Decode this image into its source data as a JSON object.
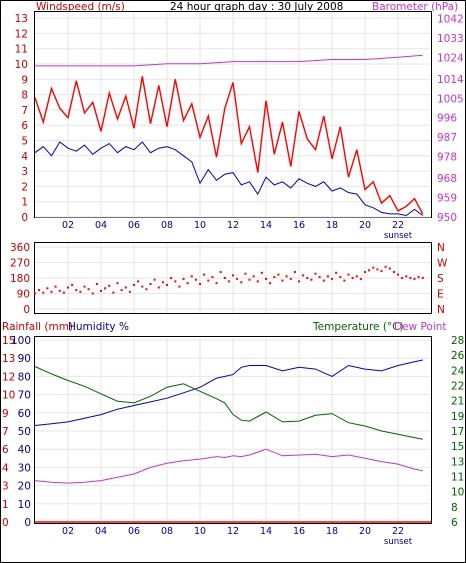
{
  "header": {
    "title": "24 hour graph day : 30 July 2008",
    "left_label": "Windspeed (m/s)",
    "right_label": "Barometer (hPa)"
  },
  "colors": {
    "frame": "#000000",
    "grid": "#e6e6e6",
    "dark_red": "#cc0000",
    "red": "#ff0000",
    "navy": "#000099",
    "magenta": "#cc33cc",
    "green": "#006600",
    "blue": "#0000cc",
    "background": "#ffffff"
  },
  "chart_data": [
    {
      "type": "line",
      "name": "wind-barometer",
      "title": "24 hour graph day : 30 July 2008",
      "x_tick_labels": [
        "02",
        "04",
        "06",
        "08",
        "10",
        "12",
        "14",
        "16",
        "18",
        "20",
        "22"
      ],
      "x_tick_hours": [
        2,
        4,
        6,
        8,
        10,
        12,
        14,
        16,
        18,
        20,
        22
      ],
      "xlim": [
        0,
        24
      ],
      "x_annotation": "sunset",
      "sunset_hour": 22,
      "left_axis": {
        "label": "Windspeed (m/s)",
        "ticks": [
          0,
          1,
          2,
          3,
          4,
          5,
          6,
          7,
          8,
          9,
          10,
          11,
          12,
          13
        ],
        "ylim": [
          0,
          13.4
        ]
      },
      "right_axis": {
        "label": "Barometer (hPa)",
        "ticks": [
          950,
          959,
          968,
          978,
          987,
          996,
          1005,
          1014,
          1024,
          1033,
          1042
        ],
        "ylim": [
          950,
          1045
        ]
      },
      "grid": true,
      "series": [
        {
          "axis": "left",
          "x": [
            0,
            0.5,
            1,
            1.5,
            2,
            2.5,
            3,
            3.5,
            4,
            4.5,
            5,
            5.5,
            6,
            6.5,
            7,
            7.5,
            8,
            8.5,
            9,
            9.5,
            10,
            10.5,
            11,
            11.5,
            12,
            12.5,
            13,
            13.5,
            14,
            14.5,
            15,
            15.5,
            16,
            16.5,
            17,
            17.5,
            18,
            18.5,
            19,
            19.5,
            20,
            20.5,
            21,
            21.5,
            22,
            22.5,
            23,
            23.5
          ],
          "values": [
            7.8,
            6.2,
            8.4,
            7.1,
            6.5,
            8.9,
            6.8,
            7.5,
            5.6,
            8.1,
            6.4,
            7.9,
            5.8,
            9.2,
            6.1,
            8.6,
            5.9,
            9.0,
            6.3,
            7.4,
            5.2,
            6.6,
            3.9,
            7.1,
            8.8,
            4.8,
            5.9,
            2.9,
            7.6,
            4.1,
            6.2,
            3.3,
            6.9,
            5.1,
            4.4,
            6.6,
            3.8,
            5.9,
            2.6,
            4.4,
            1.8,
            2.3,
            0.9,
            1.4,
            0.4,
            0.7,
            1.2,
            0.2
          ]
        },
        {
          "axis": "left",
          "x": [
            0,
            0.5,
            1,
            1.5,
            2,
            2.5,
            3,
            3.5,
            4,
            4.5,
            5,
            5.5,
            6,
            6.5,
            7,
            7.5,
            8,
            8.5,
            9,
            9.5,
            10,
            10.5,
            11,
            11.5,
            12,
            12.5,
            13,
            13.5,
            14,
            14.5,
            15,
            15.5,
            16,
            16.5,
            17,
            17.5,
            18,
            18.5,
            19,
            19.5,
            20,
            20.5,
            21,
            21.5,
            22,
            22.5,
            23,
            23.5
          ],
          "values": [
            4.2,
            4.6,
            4.0,
            4.9,
            4.5,
            4.3,
            4.7,
            4.1,
            4.5,
            4.8,
            4.2,
            4.6,
            4.4,
            4.9,
            4.2,
            4.5,
            4.6,
            4.4,
            4.0,
            3.6,
            2.2,
            3.1,
            2.4,
            2.8,
            2.9,
            2.1,
            2.3,
            1.5,
            2.6,
            2.1,
            2.3,
            1.9,
            2.5,
            2.2,
            2.0,
            2.3,
            1.7,
            1.9,
            1.6,
            1.5,
            0.8,
            0.6,
            0.3,
            0.2,
            0.2,
            0.1,
            0.5,
            0.1
          ]
        },
        {
          "axis": "right",
          "x": [
            0,
            2,
            4,
            6,
            8,
            10,
            12,
            14,
            16,
            18,
            20,
            22,
            23.5
          ],
          "values": [
            1020,
            1020,
            1020,
            1020,
            1021,
            1021,
            1022,
            1022,
            1022,
            1023,
            1023,
            1024,
            1025
          ]
        }
      ]
    },
    {
      "type": "scatter",
      "name": "wind-direction",
      "left_ticks": [
        0,
        90,
        180,
        270,
        360
      ],
      "right_ticks": [
        "N",
        "E",
        "S",
        "W",
        "N"
      ],
      "ylim": [
        0,
        360
      ],
      "xlim": [
        0,
        24
      ],
      "grid": true,
      "series": [
        {
          "x": [
            0,
            0.25,
            0.5,
            0.75,
            1,
            1.25,
            1.5,
            1.75,
            2,
            2.25,
            2.5,
            2.75,
            3,
            3.25,
            3.5,
            3.75,
            4,
            4.25,
            4.5,
            4.75,
            5,
            5.25,
            5.5,
            5.75,
            6,
            6.25,
            6.5,
            6.75,
            7,
            7.25,
            7.5,
            7.75,
            8,
            8.25,
            8.5,
            8.75,
            9,
            9.25,
            9.5,
            9.75,
            10,
            10.25,
            10.5,
            10.75,
            11,
            11.25,
            11.5,
            11.75,
            12,
            12.25,
            12.5,
            12.75,
            13,
            13.25,
            13.5,
            13.75,
            14,
            14.25,
            14.5,
            14.75,
            15,
            15.25,
            15.5,
            15.75,
            16,
            16.25,
            16.5,
            16.75,
            17,
            17.25,
            17.5,
            17.75,
            18,
            18.25,
            18.5,
            18.75,
            19,
            19.25,
            19.5,
            19.75,
            20,
            20.25,
            20.5,
            20.75,
            21,
            21.25,
            21.5,
            21.75,
            22,
            22.25,
            22.5,
            22.75,
            23,
            23.25,
            23.5
          ],
          "values": [
            90,
            110,
            95,
            120,
            100,
            130,
            105,
            95,
            125,
            140,
            110,
            100,
            130,
            115,
            90,
            145,
            105,
            120,
            135,
            95,
            150,
            110,
            125,
            100,
            140,
            160,
            130,
            115,
            145,
            170,
            125,
            155,
            140,
            180,
            160,
            130,
            175,
            150,
            190,
            170,
            145,
            200,
            165,
            185,
            150,
            215,
            180,
            160,
            195,
            175,
            155,
            205,
            170,
            190,
            160,
            210,
            175,
            150,
            185,
            200,
            165,
            190,
            175,
            215,
            160,
            195,
            180,
            170,
            205,
            185,
            165,
            190,
            175,
            210,
            185,
            165,
            200,
            180,
            190,
            175,
            215,
            225,
            240,
            230,
            220,
            245,
            235,
            215,
            200,
            180,
            190,
            180,
            175,
            185,
            180
          ]
        }
      ]
    },
    {
      "type": "line",
      "name": "rain-humidity-temperature",
      "left_labels": [
        "Rainfall (mm)",
        "Humidity %"
      ],
      "right_labels": [
        "Temperature (°C)",
        "Dew Point"
      ],
      "x_tick_labels": [
        "02",
        "04",
        "06",
        "08",
        "10",
        "12",
        "14",
        "16",
        "18",
        "20",
        "22"
      ],
      "x_tick_hours": [
        2,
        4,
        6,
        8,
        10,
        12,
        14,
        16,
        18,
        20,
        22
      ],
      "xlim": [
        0,
        24
      ],
      "x_annotation": "sunset",
      "sunset_hour": 22,
      "rain_ticks": [
        0,
        1,
        2,
        3,
        4,
        5,
        6,
        7,
        8,
        9,
        10
      ],
      "humidity_ticks": [
        0,
        10,
        20,
        30,
        40,
        50,
        60,
        70,
        80,
        90,
        100
      ],
      "humidity_tick_labels": [
        "0",
        "10",
        "20",
        "30",
        "40",
        "50",
        "60",
        "70",
        "80",
        "90",
        "100"
      ],
      "rain_tick_labels": [
        "0",
        "1",
        "3",
        "4",
        "6",
        "7",
        "9",
        "10",
        "12",
        "13",
        "15"
      ],
      "right_ticks": [
        "6",
        "8",
        "10",
        "11",
        "13",
        "15",
        "17",
        "19",
        "21",
        "22",
        "24",
        "26",
        "28"
      ],
      "temperature_ylim": [
        6,
        28
      ],
      "grid": true,
      "series": [
        {
          "axis": "humidity",
          "x": [
            0,
            1,
            2,
            3,
            4,
            5,
            6,
            7,
            8,
            9,
            10,
            11,
            11.5,
            12,
            12.5,
            13,
            14,
            15,
            16,
            17,
            18,
            19,
            20,
            21,
            22,
            23,
            23.5
          ],
          "values": [
            53,
            54,
            55,
            57,
            59,
            62,
            64,
            66,
            68,
            71,
            74,
            79,
            80,
            81,
            85,
            86,
            86,
            83,
            85,
            84,
            80,
            86,
            84,
            83,
            86,
            88,
            89
          ]
        },
        {
          "axis": "temperature",
          "x": [
            0,
            1,
            2,
            3,
            4,
            5,
            6,
            7,
            8,
            9,
            10,
            11,
            11.5,
            12,
            12.5,
            13,
            14,
            15,
            16,
            17,
            18,
            19,
            20,
            21,
            22,
            23,
            23.5
          ],
          "values": [
            24.8,
            23.9,
            23.1,
            22.4,
            21.5,
            20.6,
            20.4,
            21.2,
            22.3,
            22.7,
            21.8,
            20.9,
            20.4,
            19.0,
            18.3,
            18.2,
            19.3,
            18.1,
            18.2,
            18.9,
            19.1,
            18.0,
            17.6,
            17.0,
            16.6,
            16.2,
            16.0
          ]
        },
        {
          "axis": "temperature",
          "x": [
            0,
            1,
            2,
            3,
            4,
            5,
            6,
            7,
            8,
            9,
            10,
            11,
            11.5,
            12,
            12.5,
            13,
            14,
            15,
            16,
            17,
            18,
            19,
            20,
            21,
            22,
            23,
            23.5
          ],
          "values": [
            11.0,
            10.8,
            10.7,
            10.8,
            11.0,
            11.4,
            11.8,
            12.6,
            13.1,
            13.4,
            13.6,
            13.9,
            13.8,
            14.0,
            13.9,
            14.1,
            14.8,
            14.0,
            14.1,
            14.2,
            13.9,
            14.1,
            13.7,
            13.3,
            13.0,
            12.4,
            12.2
          ]
        },
        {
          "axis": "rain",
          "x": [
            0,
            24
          ],
          "values": [
            0,
            0
          ]
        }
      ]
    }
  ]
}
